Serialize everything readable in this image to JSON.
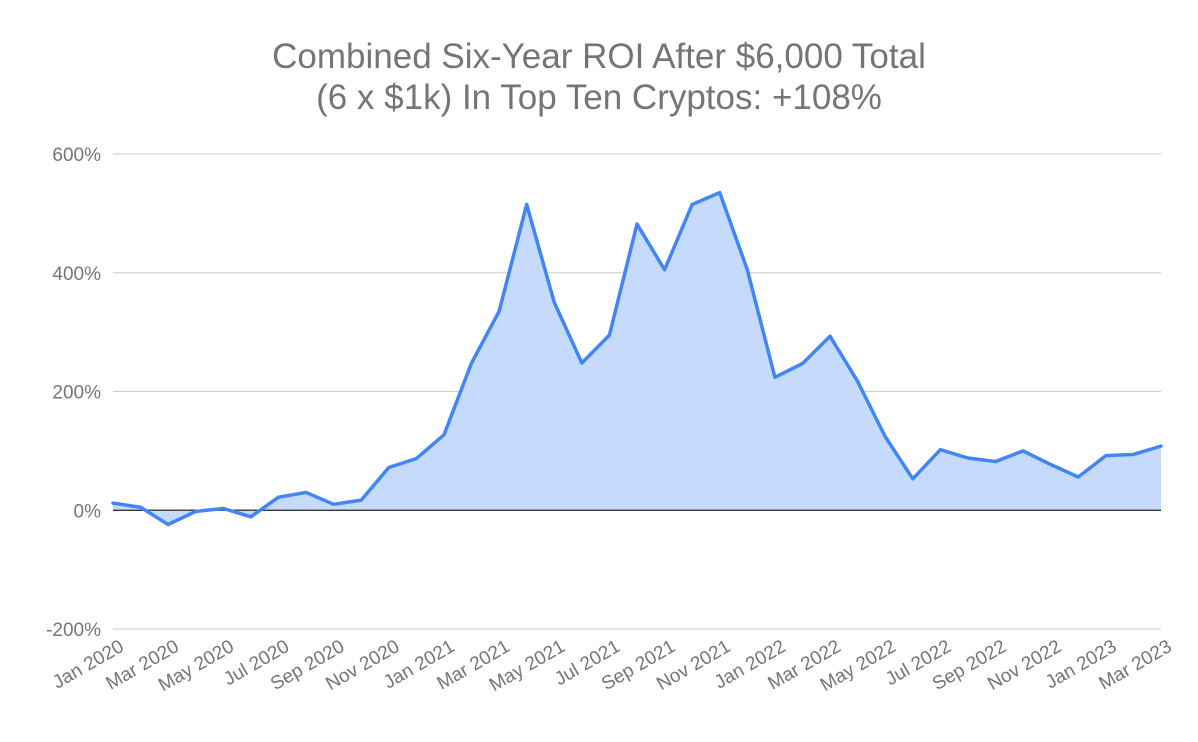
{
  "chart_data": {
    "type": "area",
    "title": [
      "Combined Six-Year ROI After $6,000 Total",
      "(6 x $1k) In Top Ten Cryptos: +108%"
    ],
    "xlabel": "",
    "ylabel": "",
    "ylim": [
      -200,
      600
    ],
    "yticks": [
      -200,
      0,
      200,
      400,
      600
    ],
    "ytick_labels": [
      "-200%",
      "0%",
      "200%",
      "400%",
      "600%"
    ],
    "grid": true,
    "legend": "none",
    "x_tick_labels": [
      "Jan 2020",
      "Mar 2020",
      "May 2020",
      "Jul 2020",
      "Sep 2020",
      "Nov 2020",
      "Jan 2021",
      "Mar 2021",
      "May 2021",
      "Jul 2021",
      "Sep 2021",
      "Nov 2021",
      "Jan 2022",
      "Mar 2022",
      "May 2022",
      "Jul 2022",
      "Sep 2022",
      "Nov 2022",
      "Jan 2023",
      "Mar 2023"
    ],
    "x": [
      "Jan 2020",
      "Feb 2020",
      "Mar 2020",
      "Apr 2020",
      "May 2020",
      "Jun 2020",
      "Jul 2020",
      "Aug 2020",
      "Sep 2020",
      "Oct 2020",
      "Nov 2020",
      "Dec 2020",
      "Jan 2021",
      "Feb 2021",
      "Mar 2021",
      "Apr 2021",
      "May 2021",
      "Jun 2021",
      "Jul 2021",
      "Aug 2021",
      "Sep 2021",
      "Oct 2021",
      "Nov 2021",
      "Dec 2021",
      "Jan 2022",
      "Feb 2022",
      "Mar 2022",
      "Apr 2022",
      "May 2022",
      "Jun 2022",
      "Jul 2022",
      "Aug 2022",
      "Sep 2022",
      "Oct 2022",
      "Nov 2022",
      "Dec 2022",
      "Jan 2023",
      "Feb 2023",
      "Mar 2023"
    ],
    "series": [
      {
        "values": [
          12,
          5,
          -24,
          -2,
          3,
          -11,
          22,
          30,
          10,
          17,
          72,
          87,
          127,
          248,
          335,
          515,
          350,
          248,
          295,
          482,
          405,
          515,
          535,
          405,
          224,
          247,
          293,
          217,
          124,
          53,
          102,
          88,
          82,
          100,
          77,
          56,
          92,
          94,
          108
        ],
        "line_color": "#4285f4",
        "fill_color": "#c6dafc"
      }
    ]
  }
}
